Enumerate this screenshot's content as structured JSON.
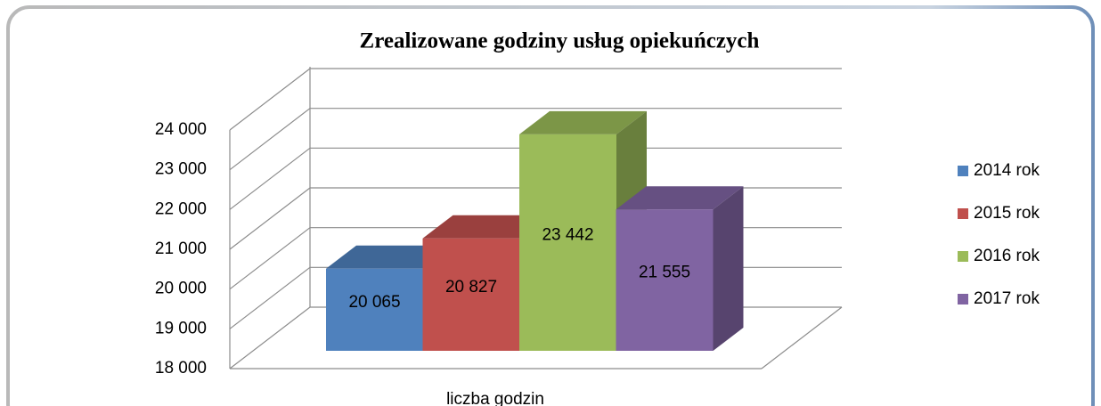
{
  "chart_data": {
    "type": "bar3d",
    "title": "Zrealizowane godziny usług opiekuńczych",
    "categories": [
      "liczba godzin"
    ],
    "series": [
      {
        "name": "2014 rok",
        "color": "#4f81bd",
        "values": [
          20065
        ],
        "value_labels": [
          "20 065"
        ]
      },
      {
        "name": "2015 rok",
        "color": "#c0504d",
        "values": [
          20827
        ],
        "value_labels": [
          "20 827"
        ]
      },
      {
        "name": "2016 rok",
        "color": "#9bbb59",
        "values": [
          23442
        ],
        "value_labels": [
          "23 442"
        ]
      },
      {
        "name": "2017 rok",
        "color": "#8064a2",
        "values": [
          21555
        ],
        "value_labels": [
          "21 555"
        ]
      }
    ],
    "ylim": [
      18000,
      24000
    ],
    "yticks": [
      {
        "value": 18000,
        "label": "18 000"
      },
      {
        "value": 19000,
        "label": "19 000"
      },
      {
        "value": 20000,
        "label": "20 000"
      },
      {
        "value": 21000,
        "label": "21 000"
      },
      {
        "value": 22000,
        "label": "22 000"
      },
      {
        "value": 23000,
        "label": "23 000"
      },
      {
        "value": 24000,
        "label": "24 000"
      }
    ],
    "grid": true,
    "legend": "right"
  }
}
